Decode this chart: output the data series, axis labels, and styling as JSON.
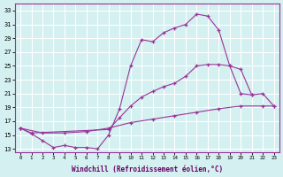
{
  "xlabel": "Windchill (Refroidissement éolien,°C)",
  "background_color": "#d4f0f0",
  "grid_color": "#ffffff",
  "line_color": "#993399",
  "x_ticks": [
    0,
    1,
    2,
    3,
    4,
    5,
    6,
    7,
    8,
    9,
    10,
    11,
    12,
    13,
    14,
    15,
    16,
    17,
    18,
    19,
    20,
    21,
    22,
    23
  ],
  "y_ticks": [
    13,
    15,
    17,
    19,
    21,
    23,
    25,
    27,
    29,
    31,
    33
  ],
  "xlim": [
    -0.5,
    23.5
  ],
  "ylim": [
    12.5,
    34.0
  ],
  "series1_x": [
    0,
    1,
    2,
    3,
    4,
    5,
    6,
    7,
    8,
    9,
    10,
    11,
    12,
    13,
    14,
    15,
    16,
    17,
    18,
    19,
    20,
    21
  ],
  "series1_y": [
    16.0,
    15.2,
    14.2,
    13.2,
    13.5,
    13.2,
    13.2,
    13.0,
    15.0,
    18.8,
    25.0,
    28.8,
    28.5,
    29.8,
    30.5,
    31.0,
    32.5,
    32.2,
    30.2,
    25.0,
    21.0,
    20.8
  ],
  "series2_x": [
    0,
    1,
    8,
    9,
    10,
    11,
    12,
    13,
    14,
    15,
    16,
    17,
    18,
    19,
    20,
    21,
    22,
    23
  ],
  "series2_y": [
    16.0,
    15.3,
    15.8,
    17.5,
    19.2,
    20.5,
    21.3,
    22.0,
    22.5,
    23.5,
    25.0,
    25.2,
    25.2,
    25.0,
    24.5,
    20.8,
    21.0,
    19.2
  ],
  "series3_x": [
    0,
    2,
    4,
    6,
    8,
    10,
    12,
    14,
    16,
    18,
    20,
    22,
    23
  ],
  "series3_y": [
    16.0,
    15.3,
    15.3,
    15.5,
    16.0,
    16.8,
    17.3,
    17.8,
    18.3,
    18.8,
    19.2,
    19.2,
    19.2
  ]
}
